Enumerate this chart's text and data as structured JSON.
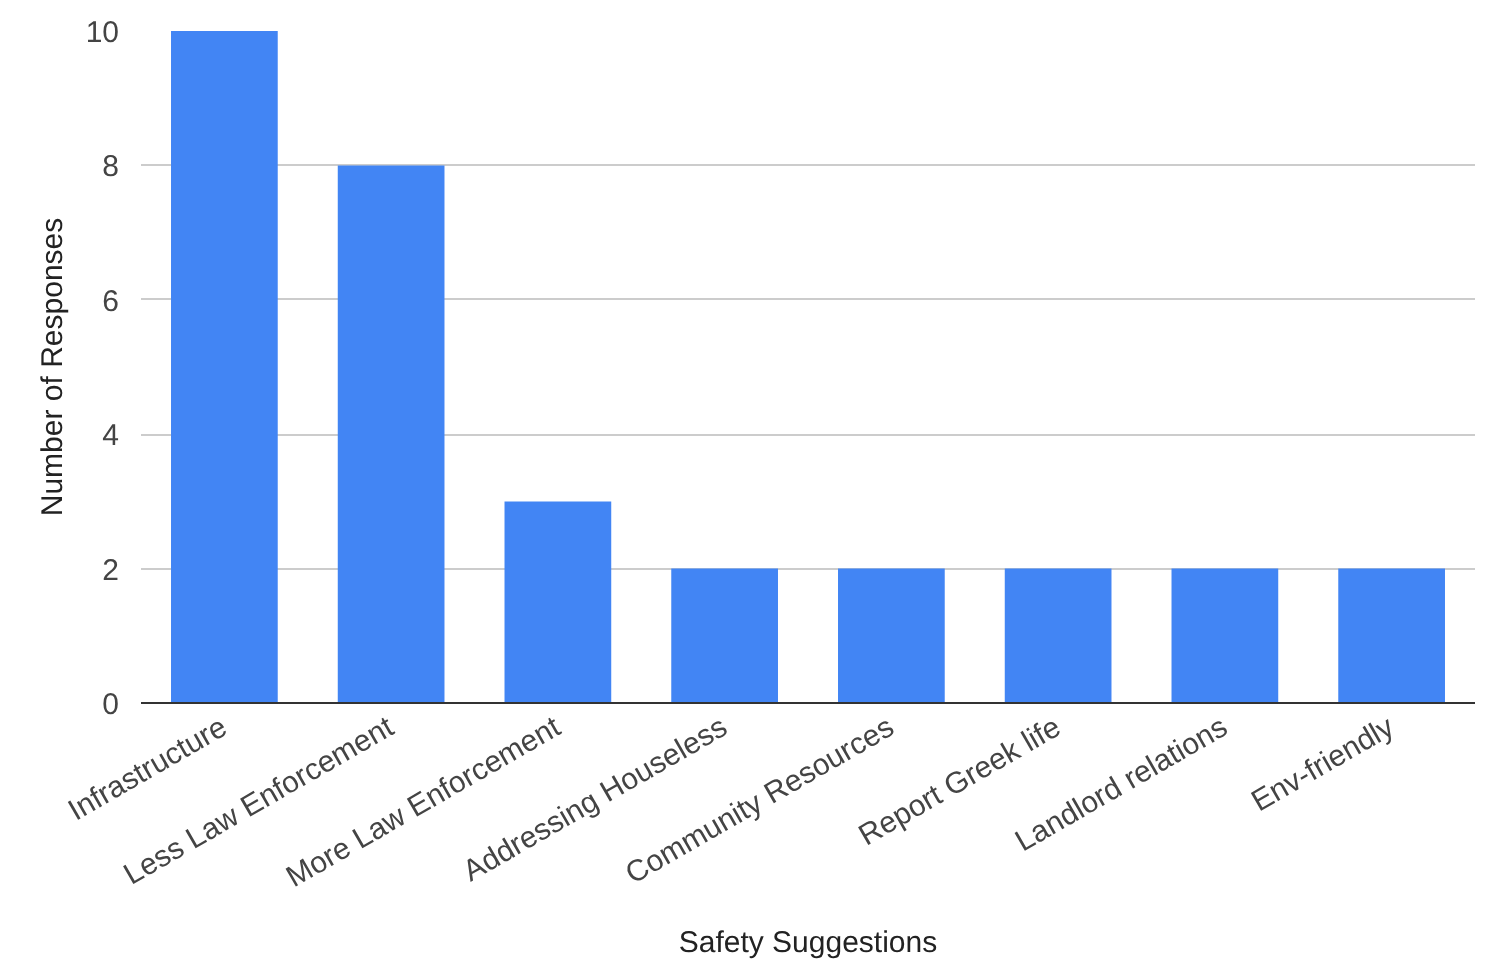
{
  "chart_data": {
    "type": "bar",
    "xlabel": "Safety Suggestions",
    "ylabel": "Number of Responses",
    "categories": [
      "Infrastructure",
      "Less Law Enforcement",
      "More Law Enforcement",
      "Addressing Houseless",
      "Community Resources",
      "Report Greek life",
      "Landlord relations",
      "Env-friendly"
    ],
    "values": [
      10,
      8,
      3,
      2,
      2,
      2,
      2,
      2
    ],
    "color": "#4285f4",
    "ylim": [
      0,
      10
    ],
    "yticks": [
      0,
      2,
      4,
      6,
      8,
      10
    ],
    "grid": "y"
  }
}
